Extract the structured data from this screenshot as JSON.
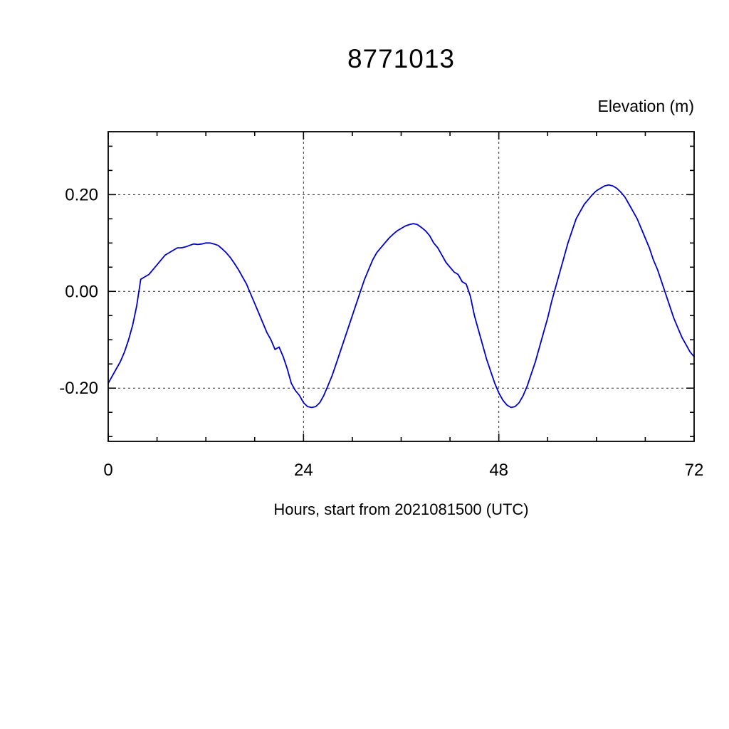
{
  "chart_data": {
    "type": "line",
    "title": "8771013",
    "ylabel": "Elevation (m)",
    "xlabel": "Hours, start from 2021081500 (UTC)",
    "xlim": [
      0,
      72
    ],
    "ylim": [
      -0.31,
      0.33
    ],
    "x_major_ticks": [
      0,
      24,
      48,
      72
    ],
    "x_tick_labels": [
      "0",
      "24",
      "48",
      "72"
    ],
    "x_minor_step": 6,
    "y_major_ticks": [
      -0.2,
      0.0,
      0.2
    ],
    "y_tick_labels": [
      "-0.20",
      "0.00",
      "0.20"
    ],
    "y_minor_step": 0.05,
    "x_grid": [
      24,
      48
    ],
    "y_grid": [
      -0.2,
      0.0,
      0.2
    ],
    "grid_style": "dotted",
    "legend": "none",
    "line_color": "#0000cc",
    "series": [
      {
        "name": "elevation",
        "points": [
          [
            0,
            -0.19
          ],
          [
            0.5,
            -0.175
          ],
          [
            1,
            -0.16
          ],
          [
            1.5,
            -0.145
          ],
          [
            2,
            -0.125
          ],
          [
            2.5,
            -0.1
          ],
          [
            3,
            -0.07
          ],
          [
            3.5,
            -0.03
          ],
          [
            4,
            0.025
          ],
          [
            4.5,
            0.03
          ],
          [
            5,
            0.035
          ],
          [
            5.5,
            0.045
          ],
          [
            6,
            0.055
          ],
          [
            6.5,
            0.065
          ],
          [
            7,
            0.075
          ],
          [
            7.5,
            0.08
          ],
          [
            8,
            0.085
          ],
          [
            8.5,
            0.09
          ],
          [
            9,
            0.09
          ],
          [
            9.5,
            0.092
          ],
          [
            10,
            0.095
          ],
          [
            10.5,
            0.098
          ],
          [
            11,
            0.097
          ],
          [
            11.5,
            0.098
          ],
          [
            12,
            0.1
          ],
          [
            12.5,
            0.1
          ],
          [
            13,
            0.098
          ],
          [
            13.5,
            0.095
          ],
          [
            14,
            0.088
          ],
          [
            14.5,
            0.08
          ],
          [
            15,
            0.07
          ],
          [
            15.5,
            0.058
          ],
          [
            16,
            0.045
          ],
          [
            16.5,
            0.03
          ],
          [
            17,
            0.015
          ],
          [
            17.5,
            -0.005
          ],
          [
            18,
            -0.025
          ],
          [
            18.5,
            -0.045
          ],
          [
            19,
            -0.065
          ],
          [
            19.5,
            -0.085
          ],
          [
            20,
            -0.1
          ],
          [
            20.5,
            -0.12
          ],
          [
            21,
            -0.115
          ],
          [
            21.5,
            -0.135
          ],
          [
            22,
            -0.16
          ],
          [
            22.5,
            -0.19
          ],
          [
            23,
            -0.205
          ],
          [
            23.5,
            -0.215
          ],
          [
            24,
            -0.23
          ],
          [
            24.5,
            -0.238
          ],
          [
            25,
            -0.24
          ],
          [
            25.5,
            -0.238
          ],
          [
            26,
            -0.23
          ],
          [
            26.5,
            -0.215
          ],
          [
            27,
            -0.195
          ],
          [
            27.5,
            -0.175
          ],
          [
            28,
            -0.15
          ],
          [
            28.5,
            -0.125
          ],
          [
            29,
            -0.1
          ],
          [
            29.5,
            -0.075
          ],
          [
            30,
            -0.05
          ],
          [
            30.5,
            -0.025
          ],
          [
            31,
            0.0
          ],
          [
            31.5,
            0.025
          ],
          [
            32,
            0.045
          ],
          [
            32.5,
            0.065
          ],
          [
            33,
            0.08
          ],
          [
            33.5,
            0.09
          ],
          [
            34,
            0.1
          ],
          [
            34.5,
            0.11
          ],
          [
            35,
            0.118
          ],
          [
            35.5,
            0.125
          ],
          [
            36,
            0.13
          ],
          [
            36.5,
            0.135
          ],
          [
            37,
            0.138
          ],
          [
            37.5,
            0.14
          ],
          [
            38,
            0.138
          ],
          [
            38.5,
            0.132
          ],
          [
            39,
            0.125
          ],
          [
            39.5,
            0.115
          ],
          [
            40,
            0.1
          ],
          [
            40.5,
            0.09
          ],
          [
            41,
            0.075
          ],
          [
            41.5,
            0.06
          ],
          [
            42,
            0.05
          ],
          [
            42.5,
            0.04
          ],
          [
            43,
            0.035
          ],
          [
            43.5,
            0.02
          ],
          [
            44,
            0.015
          ],
          [
            44.5,
            -0.01
          ],
          [
            45,
            -0.05
          ],
          [
            45.5,
            -0.08
          ],
          [
            46,
            -0.11
          ],
          [
            46.5,
            -0.14
          ],
          [
            47,
            -0.165
          ],
          [
            47.5,
            -0.19
          ],
          [
            48,
            -0.21
          ],
          [
            48.5,
            -0.225
          ],
          [
            49,
            -0.235
          ],
          [
            49.5,
            -0.24
          ],
          [
            50,
            -0.238
          ],
          [
            50.5,
            -0.23
          ],
          [
            51,
            -0.215
          ],
          [
            51.5,
            -0.195
          ],
          [
            52,
            -0.17
          ],
          [
            52.5,
            -0.145
          ],
          [
            53,
            -0.115
          ],
          [
            53.5,
            -0.085
          ],
          [
            54,
            -0.055
          ],
          [
            54.5,
            -0.02
          ],
          [
            55,
            0.01
          ],
          [
            55.5,
            0.04
          ],
          [
            56,
            0.07
          ],
          [
            56.5,
            0.1
          ],
          [
            57,
            0.125
          ],
          [
            57.5,
            0.15
          ],
          [
            58,
            0.165
          ],
          [
            58.5,
            0.18
          ],
          [
            59,
            0.19
          ],
          [
            59.5,
            0.2
          ],
          [
            60,
            0.208
          ],
          [
            60.5,
            0.213
          ],
          [
            61,
            0.218
          ],
          [
            61.5,
            0.22
          ],
          [
            62,
            0.218
          ],
          [
            62.5,
            0.213
          ],
          [
            63,
            0.205
          ],
          [
            63.5,
            0.195
          ],
          [
            64,
            0.18
          ],
          [
            64.5,
            0.165
          ],
          [
            65,
            0.15
          ],
          [
            65.5,
            0.13
          ],
          [
            66,
            0.11
          ],
          [
            66.5,
            0.09
          ],
          [
            67,
            0.065
          ],
          [
            67.5,
            0.045
          ],
          [
            68,
            0.02
          ],
          [
            68.5,
            -0.005
          ],
          [
            69,
            -0.03
          ],
          [
            69.5,
            -0.055
          ],
          [
            70,
            -0.075
          ],
          [
            70.5,
            -0.095
          ],
          [
            71,
            -0.11
          ],
          [
            71.5,
            -0.125
          ],
          [
            72,
            -0.135
          ]
        ]
      }
    ]
  }
}
